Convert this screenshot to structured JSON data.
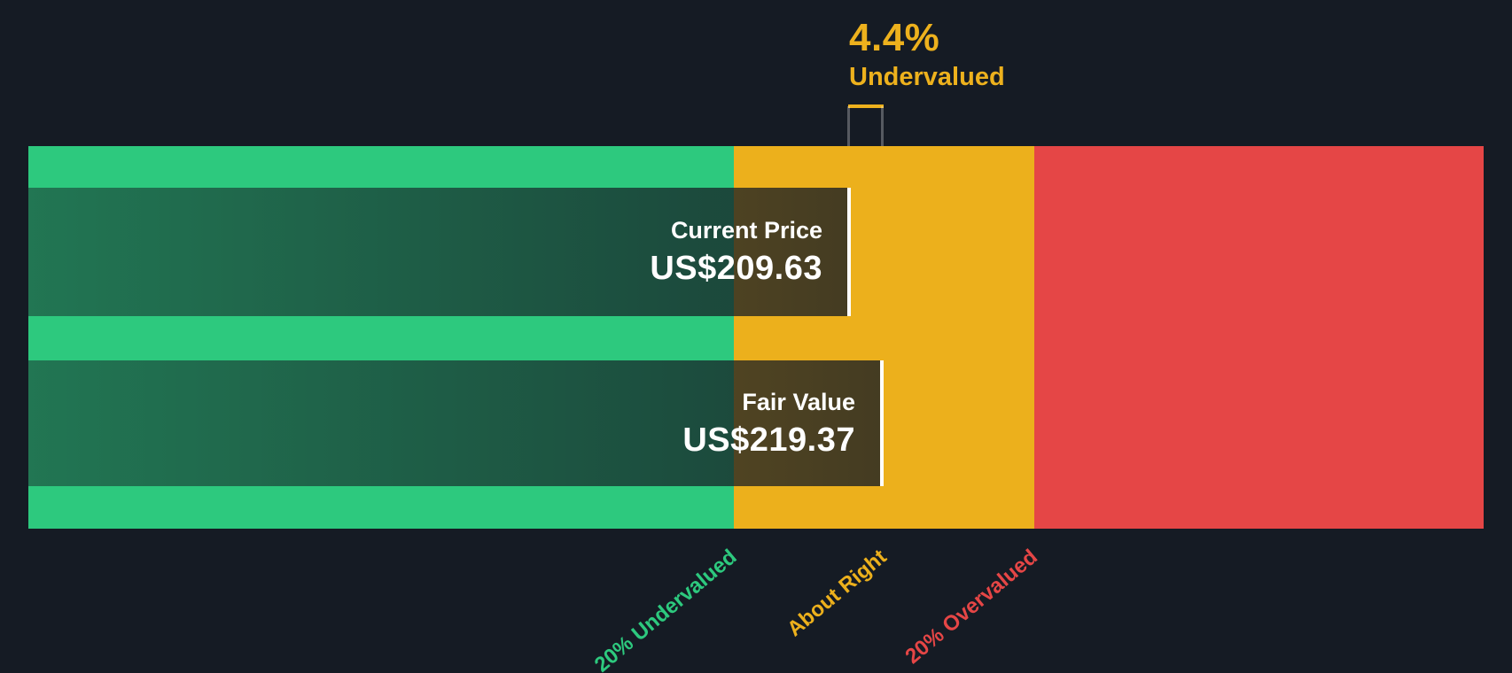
{
  "page": {
    "background": "#151b24"
  },
  "annotation": {
    "value": "4.4%",
    "label": "Undervalued",
    "color": "#edb11d"
  },
  "bars": {
    "current_price": {
      "label": "Current Price",
      "value": "US$209.63"
    },
    "fair_value": {
      "label": "Fair Value",
      "value": "US$219.37"
    }
  },
  "zones": [
    {
      "label": "20% Undervalued",
      "color": "#2dc97e"
    },
    {
      "label": "About Right",
      "color": "#ecb01c"
    },
    {
      "label": "20% Overvalued",
      "color": "#e54646"
    }
  ],
  "chart_data": {
    "type": "bar",
    "orientation": "horizontal",
    "title": "4.4% Undervalued",
    "categories": [
      "Current Price",
      "Fair Value"
    ],
    "values": [
      209.63,
      219.37
    ],
    "value_labels": [
      "US$209.63",
      "US$219.37"
    ],
    "currency": "US$",
    "discount_pct": 4.4,
    "valuation_status": "Undervalued",
    "zones": [
      {
        "label": "20% Undervalued",
        "price_range": [
          null,
          175.5
        ],
        "color": "#2dc97e"
      },
      {
        "label": "About Right",
        "price_range": [
          175.5,
          263.24
        ],
        "color": "#ecb01c"
      },
      {
        "label": "20% Overvalued",
        "price_range": [
          263.24,
          null
        ],
        "color": "#e54646"
      }
    ],
    "grid": false,
    "legend_position": "none"
  }
}
